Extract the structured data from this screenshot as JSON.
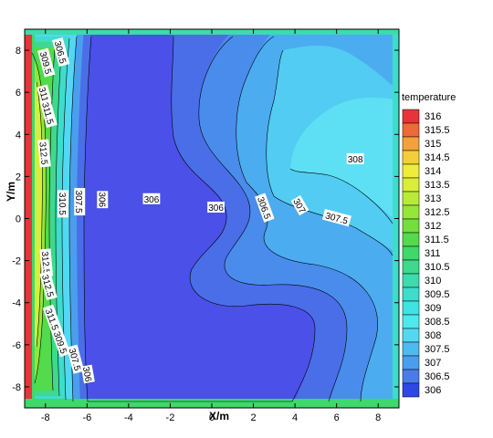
{
  "chart_data": {
    "type": "heatmap",
    "title": "",
    "xlabel": "X/m",
    "ylabel": "Y/m",
    "xlim": [
      -9,
      9
    ],
    "ylim": [
      -9,
      9
    ],
    "x_ticks": [
      -8,
      -6,
      -4,
      -2,
      0,
      2,
      4,
      6,
      8
    ],
    "y_ticks": [
      -8,
      -6,
      -4,
      -2,
      0,
      2,
      4,
      6,
      8
    ],
    "grid": false,
    "legend_title": "temperature",
    "legend_position": "right",
    "color_levels": [
      {
        "value": 316,
        "color": "#e8333a"
      },
      {
        "value": 315.5,
        "color": "#ee6a38"
      },
      {
        "value": 315,
        "color": "#f3a13a"
      },
      {
        "value": 314.5,
        "color": "#f2cf3a"
      },
      {
        "value": 314,
        "color": "#eeee3a"
      },
      {
        "value": 313.5,
        "color": "#d8ee3a"
      },
      {
        "value": 313,
        "color": "#b8ea3a"
      },
      {
        "value": 312.5,
        "color": "#94e63a"
      },
      {
        "value": 312,
        "color": "#72e03c"
      },
      {
        "value": 311.5,
        "color": "#52db4a"
      },
      {
        "value": 311,
        "color": "#3fd86a"
      },
      {
        "value": 310.5,
        "color": "#3ed98c"
      },
      {
        "value": 310,
        "color": "#3ddbae"
      },
      {
        "value": 309.5,
        "color": "#3fdccc"
      },
      {
        "value": 309,
        "color": "#3fe3e3"
      },
      {
        "value": 308.5,
        "color": "#4ee8ee"
      },
      {
        "value": 308,
        "color": "#52d8f2"
      },
      {
        "value": 307.5,
        "color": "#4cbcf0"
      },
      {
        "value": 307,
        "color": "#4a9eee"
      },
      {
        "value": 306.5,
        "color": "#4a7ce8"
      },
      {
        "value": 306,
        "color": "#2e48e6"
      }
    ],
    "contour_labels": [
      {
        "text": "306.5",
        "x": -7.3,
        "y": 7.9,
        "angle": 75
      },
      {
        "text": "309.5",
        "x": -8.0,
        "y": 7.4,
        "angle": 75
      },
      {
        "text": "311",
        "x": -8.1,
        "y": 5.9,
        "angle": 75
      },
      {
        "text": "311.5",
        "x": -7.9,
        "y": 5.0,
        "angle": 75
      },
      {
        "text": "312.5",
        "x": -8.1,
        "y": 3.1,
        "angle": 85
      },
      {
        "text": "310.5",
        "x": -7.2,
        "y": 0.7,
        "angle": 90
      },
      {
        "text": "307.5",
        "x": -6.4,
        "y": 0.8,
        "angle": 90
      },
      {
        "text": "306",
        "x": -5.3,
        "y": 0.9,
        "angle": 90
      },
      {
        "text": "306",
        "x": -2.9,
        "y": 0.9,
        "angle": 0
      },
      {
        "text": "306",
        "x": 0.2,
        "y": 0.5,
        "angle": 0
      },
      {
        "text": "306.5",
        "x": 2.5,
        "y": 0.5,
        "angle": 70
      },
      {
        "text": "307",
        "x": 4.2,
        "y": 0.6,
        "angle": 60
      },
      {
        "text": "307.5",
        "x": 6.0,
        "y": 0.0,
        "angle": 15
      },
      {
        "text": "308",
        "x": 6.9,
        "y": 2.8,
        "angle": 0
      },
      {
        "text": "312.5",
        "x": -8.0,
        "y": -2.1,
        "angle": 85
      },
      {
        "text": "312.5",
        "x": -7.9,
        "y": -3.2,
        "angle": 75
      },
      {
        "text": "311.5",
        "x": -7.7,
        "y": -4.8,
        "angle": 70
      },
      {
        "text": "309.5",
        "x": -7.3,
        "y": -5.9,
        "angle": 70
      },
      {
        "text": "307.5",
        "x": -6.6,
        "y": -6.7,
        "angle": 75
      },
      {
        "text": "306",
        "x": -6.0,
        "y": -7.4,
        "angle": 80
      }
    ]
  }
}
